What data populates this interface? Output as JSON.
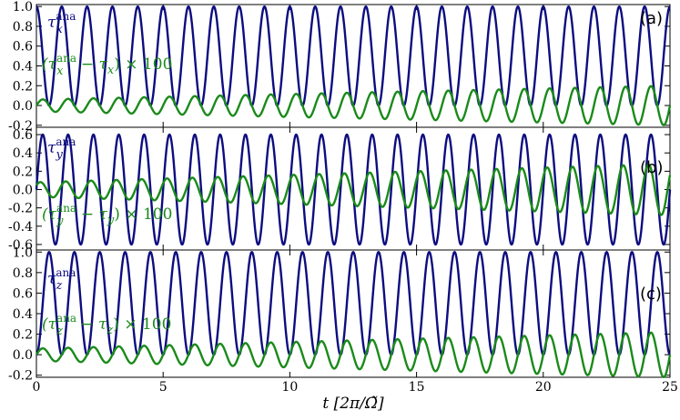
{
  "chart_data": [
    {
      "type": "line",
      "panel_label": "(a)",
      "xlim": [
        0,
        25
      ],
      "ylim": [
        -0.22,
        1.02
      ],
      "yticks": [
        "-0.2",
        "0.0",
        "0.2",
        "0.4",
        "0.6",
        "0.8",
        "1.0"
      ],
      "ytick_values": [
        -0.2,
        0.0,
        0.2,
        0.4,
        0.6,
        0.8,
        1.0
      ],
      "series": [
        {
          "name": "τ_x^ana",
          "color": "#0d0d80",
          "kind": "cos2",
          "amplitude": 1.0,
          "offset": 0.0,
          "freq": 1.0
        },
        {
          "name": "(τ_x^ana − τ_x) × 100",
          "color": "#1a8a1a",
          "kind": "sin",
          "amplitude_start": 0.06,
          "amplitude_end": 0.2,
          "offset": 0.0,
          "freq": 1.0
        }
      ]
    },
    {
      "type": "line",
      "panel_label": "(b)",
      "xlim": [
        0,
        25
      ],
      "ylim": [
        -0.66,
        0.68
      ],
      "yticks": [
        "-0.6",
        "-0.4",
        "-0.2",
        "0.0",
        "0.2",
        "0.4",
        "0.6"
      ],
      "ytick_values": [
        -0.6,
        -0.4,
        -0.2,
        0.0,
        0.2,
        0.4,
        0.6
      ],
      "series": [
        {
          "name": "τ_y^ana",
          "color": "#0d0d80",
          "kind": "sin2",
          "amplitude": 0.6,
          "offset": 0.0,
          "freq": 1.0
        },
        {
          "name": "(τ_y^ana − τ_y) × 100",
          "color": "#1a8a1a",
          "kind": "sin2",
          "amplitude_start": 0.08,
          "amplitude_end": 0.28,
          "offset": 0.0,
          "freq": 1.0
        }
      ]
    },
    {
      "type": "line",
      "panel_label": "(c)",
      "xlim": [
        0,
        25
      ],
      "ylim": [
        -0.22,
        1.02
      ],
      "yticks": [
        "-0.2",
        "0.0",
        "0.2",
        "0.4",
        "0.6",
        "0.8",
        "1.0"
      ],
      "ytick_values": [
        -0.2,
        0.0,
        0.2,
        0.4,
        0.6,
        0.8,
        1.0
      ],
      "series": [
        {
          "name": "τ_z^ana",
          "color": "#0d0d80",
          "kind": "sin2pos",
          "amplitude": 1.0,
          "offset": 0.0,
          "freq": 1.0
        },
        {
          "name": "(τ_z^ana − τ_z) × 100",
          "color": "#1a8a1a",
          "kind": "sin",
          "amplitude_start": 0.06,
          "amplitude_end": 0.22,
          "offset": 0.0,
          "freq": 1.0
        }
      ]
    }
  ],
  "xaxis": {
    "label": "t [2π/Ω̃]",
    "ticks": [
      "0",
      "5",
      "10",
      "15",
      "20",
      "25"
    ],
    "tick_values": [
      0,
      5,
      10,
      15,
      20,
      25
    ]
  },
  "legend": {
    "a_blue": "τ",
    "a_blue_sup": "ana",
    "a_blue_sub": "x",
    "a_green": "(τ",
    "a_green_sup": "ana",
    "a_green_sub": "x",
    "a_green_rest": " − τ",
    "a_green_rest_sub": "x",
    "a_green_tail": ") × 100",
    "b_blue": "τ",
    "b_blue_sup": "ana",
    "b_blue_sub": "y",
    "b_green": "(τ",
    "b_green_sup": "ana",
    "b_green_sub": "y",
    "b_green_rest": " − τ",
    "b_green_rest_sub": "y",
    "b_green_tail": ") × 100",
    "c_blue": "τ",
    "c_blue_sup": "ana",
    "c_blue_sub": "z",
    "c_green": "(τ",
    "c_green_sup": "ana",
    "c_green_sub": "z",
    "c_green_rest": " − τ",
    "c_green_rest_sub": "z",
    "c_green_tail": ") × 100"
  },
  "colors": {
    "blue": "#0d0d80",
    "green": "#1a8a1a"
  }
}
